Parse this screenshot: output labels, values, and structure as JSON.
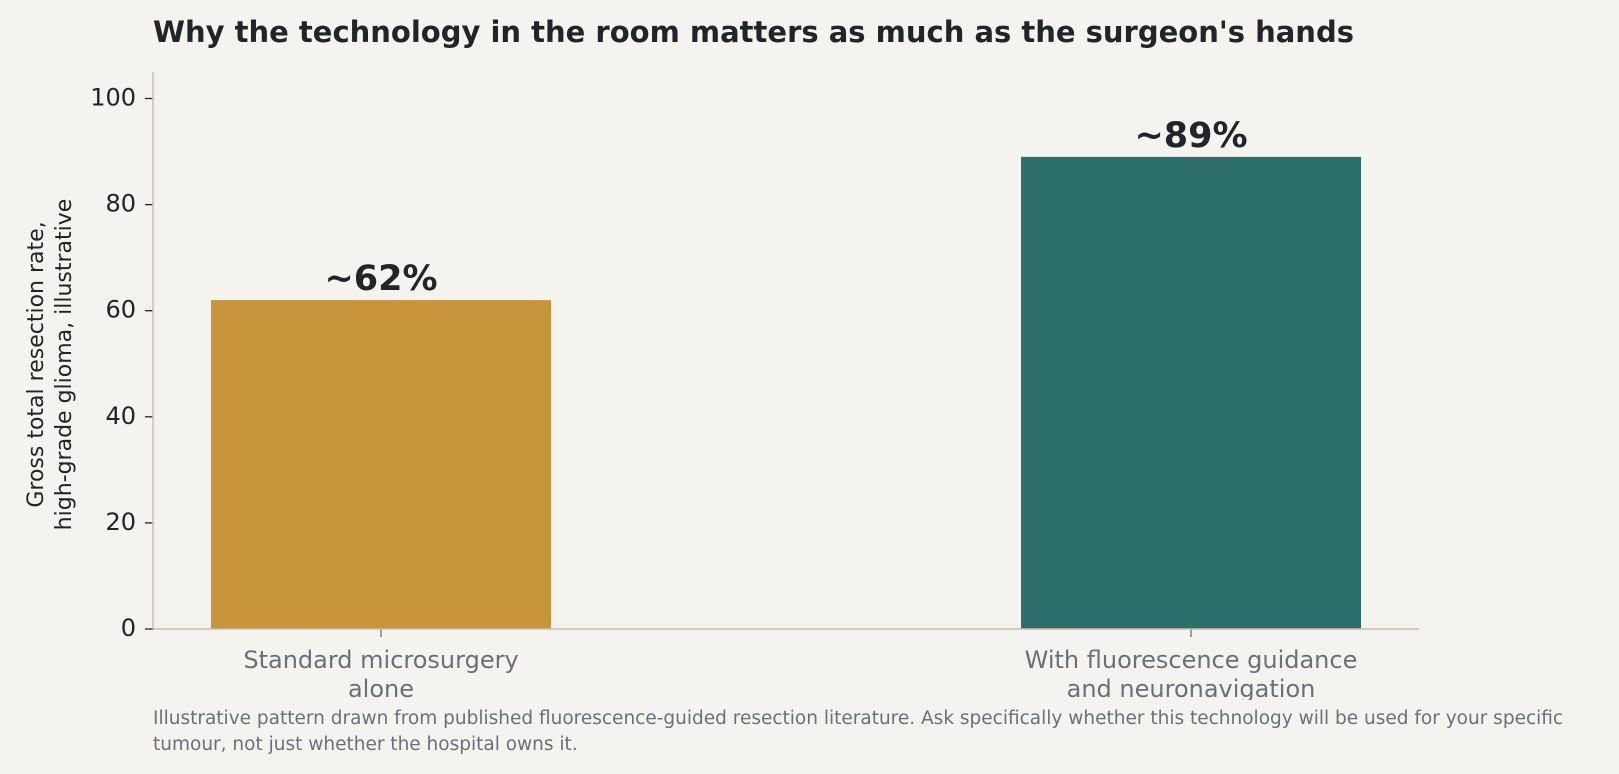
{
  "chart_data": {
    "type": "bar",
    "title": "Why the technology in the room matters as much as the surgeon's hands",
    "categories": [
      [
        "Standard microsurgery",
        "alone"
      ],
      [
        "With fluorescence guidance",
        "and neuronavigation"
      ]
    ],
    "values": [
      62,
      89
    ],
    "data_labels": [
      "~62%",
      "~89%"
    ],
    "colors": [
      "#c5943b",
      "#2b6e6b"
    ],
    "ylabel": [
      "Gross total resection rate,",
      "high-grade glioma, illustrative"
    ],
    "ylim": [
      0,
      105
    ],
    "yticks": [
      0,
      20,
      40,
      60,
      80,
      100
    ],
    "grid": false,
    "legend": "none"
  },
  "footnote": "Illustrative pattern drawn from published fluorescence-guided resection literature. Ask specifically whether this technology will be used for your specific tumour, not just whether the hospital owns it.",
  "colors": {
    "background": "#f4f3ef",
    "axis": "#c8bfa8",
    "text": "#222428",
    "muted_text": "#6b7078"
  }
}
